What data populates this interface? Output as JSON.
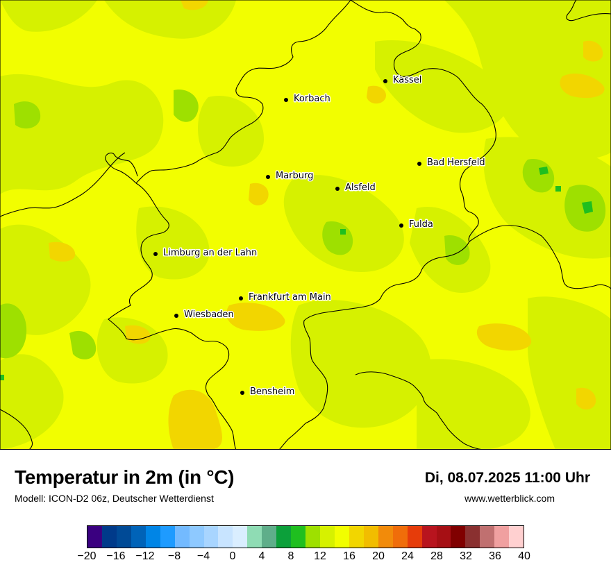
{
  "map": {
    "colors": {
      "base": "#f2fe00",
      "light_green": "#d6f100",
      "green": "#9ee000",
      "dark_green": "#1fbf1f",
      "orange": "#f2d600",
      "border": "#000000"
    },
    "cities": [
      {
        "name": "Kassel"
      },
      {
        "name": "Korbach"
      },
      {
        "name": "Bad Hersfeld"
      },
      {
        "name": "Marburg"
      },
      {
        "name": "Alsfeld"
      },
      {
        "name": "Fulda"
      },
      {
        "name": "Limburg an der Lahn"
      },
      {
        "name": "Frankfurt am Main"
      },
      {
        "name": "Wiesbaden"
      },
      {
        "name": "Bensheim"
      }
    ]
  },
  "footer": {
    "title": "Temperatur in 2m (in °C)",
    "model": "Modell: ICON-D2 06z, Deutscher Wetterdienst",
    "datetime": "Di, 08.07.2025 11:00 Uhr",
    "website": "www.wetterblick.com"
  },
  "legend": {
    "colors": [
      "#3a0080",
      "#003a8a",
      "#004a96",
      "#0063b8",
      "#0085e6",
      "#1e9bff",
      "#73baff",
      "#8ec9ff",
      "#a8d5ff",
      "#c8e4ff",
      "#daeeff",
      "#8fdcb4",
      "#5fae8a",
      "#0ca03a",
      "#1fbf1f",
      "#9ee000",
      "#d6f100",
      "#f2fe00",
      "#f2d600",
      "#f2bd00",
      "#f28b0a",
      "#f06d0a",
      "#e63c0a",
      "#b8141e",
      "#a60f14",
      "#800000",
      "#8a3030",
      "#c07070",
      "#f0a0a0",
      "#ffd0d0"
    ],
    "ticks": [
      "−20",
      "−16",
      "−12",
      "−8",
      "−4",
      "0",
      "4",
      "8",
      "12",
      "16",
      "20",
      "24",
      "28",
      "32",
      "36",
      "40"
    ]
  }
}
